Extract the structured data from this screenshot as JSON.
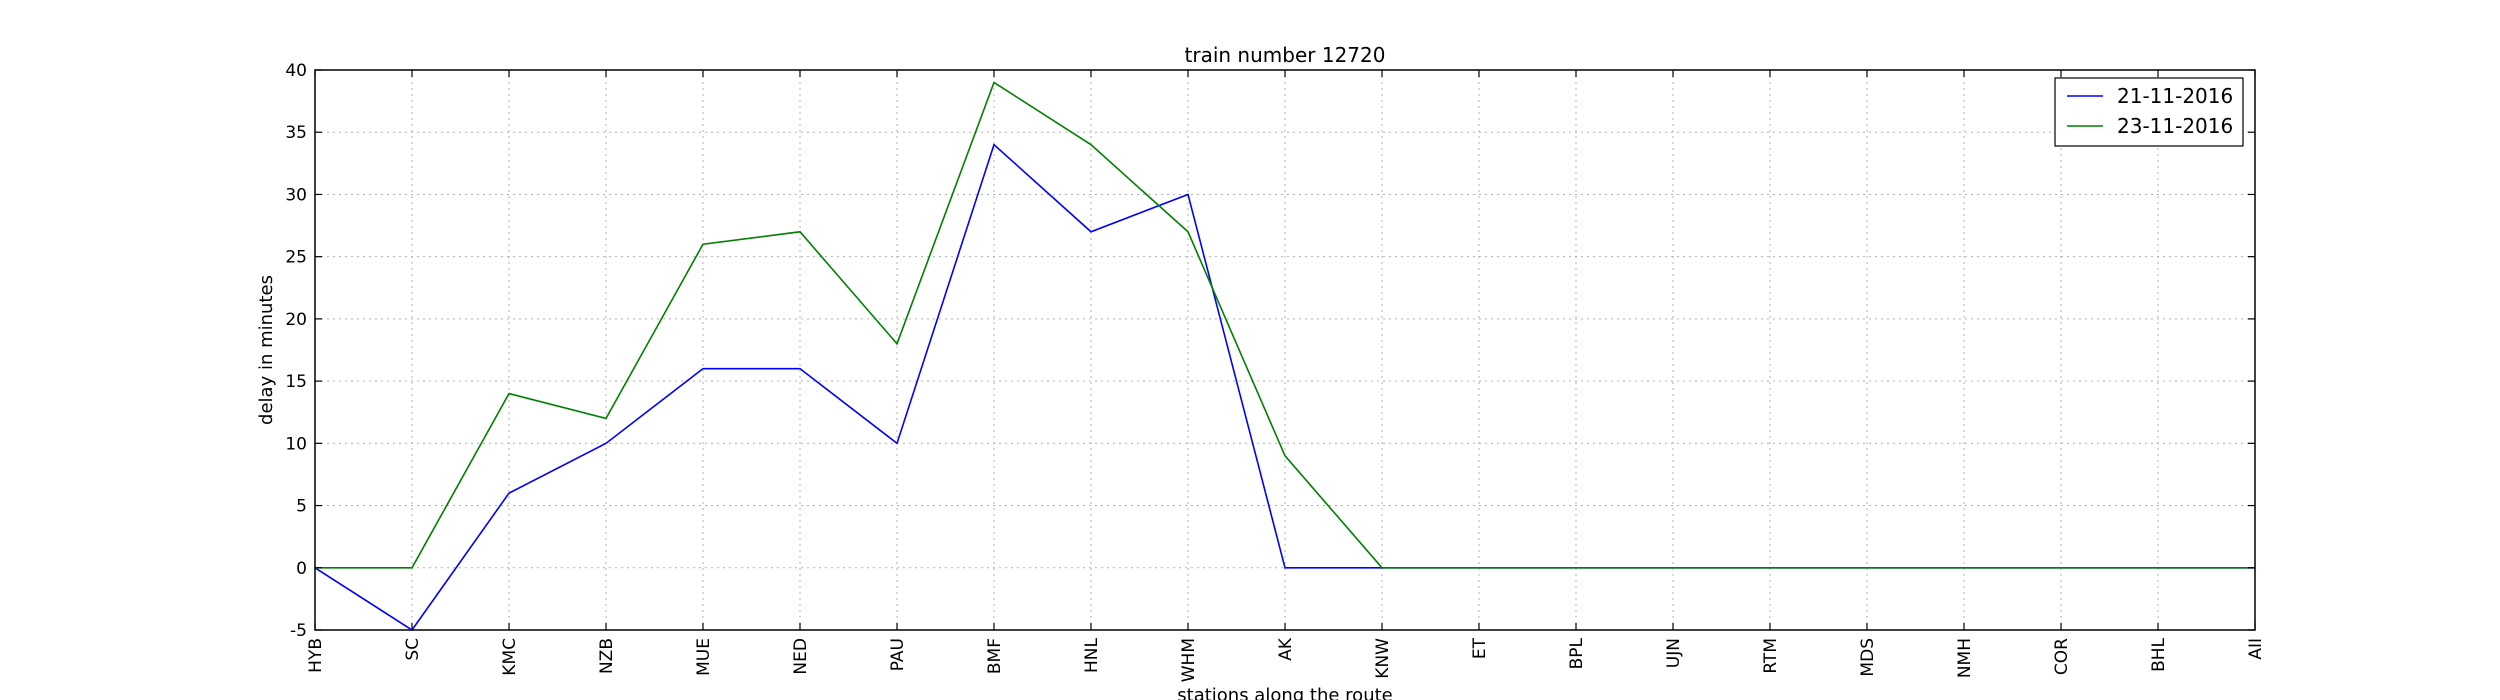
{
  "chart_data": {
    "type": "line",
    "title": "train number 12720",
    "xlabel": "stations along the route",
    "ylabel": "delay in minutes",
    "categories": [
      "HYB",
      "SC",
      "KMC",
      "NZB",
      "MUE",
      "NED",
      "PAU",
      "BMF",
      "HNL",
      "WHM",
      "AK",
      "KNW",
      "ET",
      "BPL",
      "UJN",
      "RTM",
      "MDS",
      "NMH",
      "COR",
      "BHL",
      "AII"
    ],
    "ylim": [
      -5,
      40
    ],
    "yticks": [
      -5,
      0,
      5,
      10,
      15,
      20,
      25,
      30,
      35,
      40
    ],
    "grid": true,
    "legend_position": "top-right",
    "series": [
      {
        "name": "21-11-2016",
        "color": "#0000ff",
        "values": [
          0,
          -5,
          6,
          10,
          16,
          16,
          10,
          34,
          27,
          30,
          0,
          0,
          0,
          0,
          0,
          0,
          0,
          0,
          0,
          0,
          0
        ]
      },
      {
        "name": "23-11-2016",
        "color": "#008000",
        "values": [
          0,
          0,
          14,
          12,
          26,
          27,
          18,
          39,
          34,
          27,
          9,
          0,
          0,
          0,
          0,
          0,
          0,
          0,
          0,
          0,
          0
        ]
      }
    ]
  }
}
